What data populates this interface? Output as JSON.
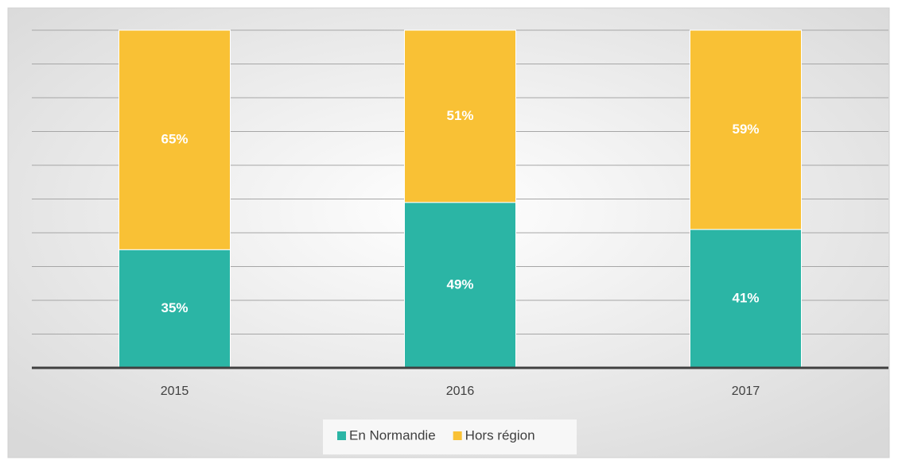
{
  "chart_data": {
    "type": "stacked_bar",
    "categories": [
      "2015",
      "2016",
      "2017"
    ],
    "series": [
      {
        "name": "En Normandie",
        "color": "#2bb5a5",
        "values": [
          35,
          49,
          41
        ],
        "value_labels": [
          "35%",
          "49%",
          "41%"
        ]
      },
      {
        "name": "Hors région",
        "color": "#f9c135",
        "values": [
          65,
          51,
          59
        ],
        "value_labels": [
          "65%",
          "51%",
          "59%"
        ]
      }
    ],
    "ylim": [
      0,
      100
    ],
    "yticks": [
      0,
      10,
      20,
      30,
      40,
      50,
      60,
      70,
      80,
      90,
      100
    ],
    "grid": true,
    "legend": "bottom"
  }
}
